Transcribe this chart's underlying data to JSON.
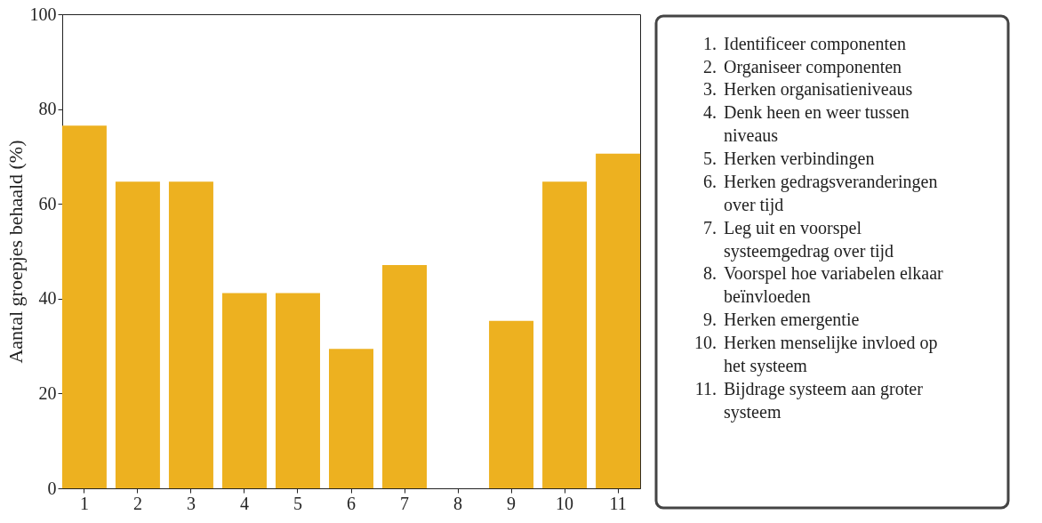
{
  "chart_data": {
    "type": "bar",
    "ylabel": "Aantal groepjes behaald (%)",
    "categories": [
      "1",
      "2",
      "3",
      "4",
      "5",
      "6",
      "7",
      "8",
      "9",
      "10",
      "11"
    ],
    "values": [
      76.5,
      64.7,
      64.7,
      41.2,
      41.2,
      29.4,
      47.1,
      0,
      35.3,
      64.7,
      70.6
    ],
    "color": "#edb120",
    "ylim": [
      0,
      100
    ],
    "yticks": [
      0,
      20,
      40,
      60,
      80,
      100
    ],
    "grid": false,
    "annotations": [
      "1. Identificeer componenten",
      "2. Organiseer componenten",
      "3. Herken organisatieniveaus",
      "4. Denk heen en weer tussen niveaus",
      "5. Herken verbindingen",
      "6. Herken gedragsveranderingen over tijd",
      "7. Leg uit en voorspel systeemgedrag over tijd",
      "8. Voorspel hoe variabelen elkaar beïnvloeden",
      "9. Herken emergentie",
      "10. Herken menselijke invloed op het systeem",
      "11. Bijdrage systeem aan groter systeem"
    ]
  }
}
